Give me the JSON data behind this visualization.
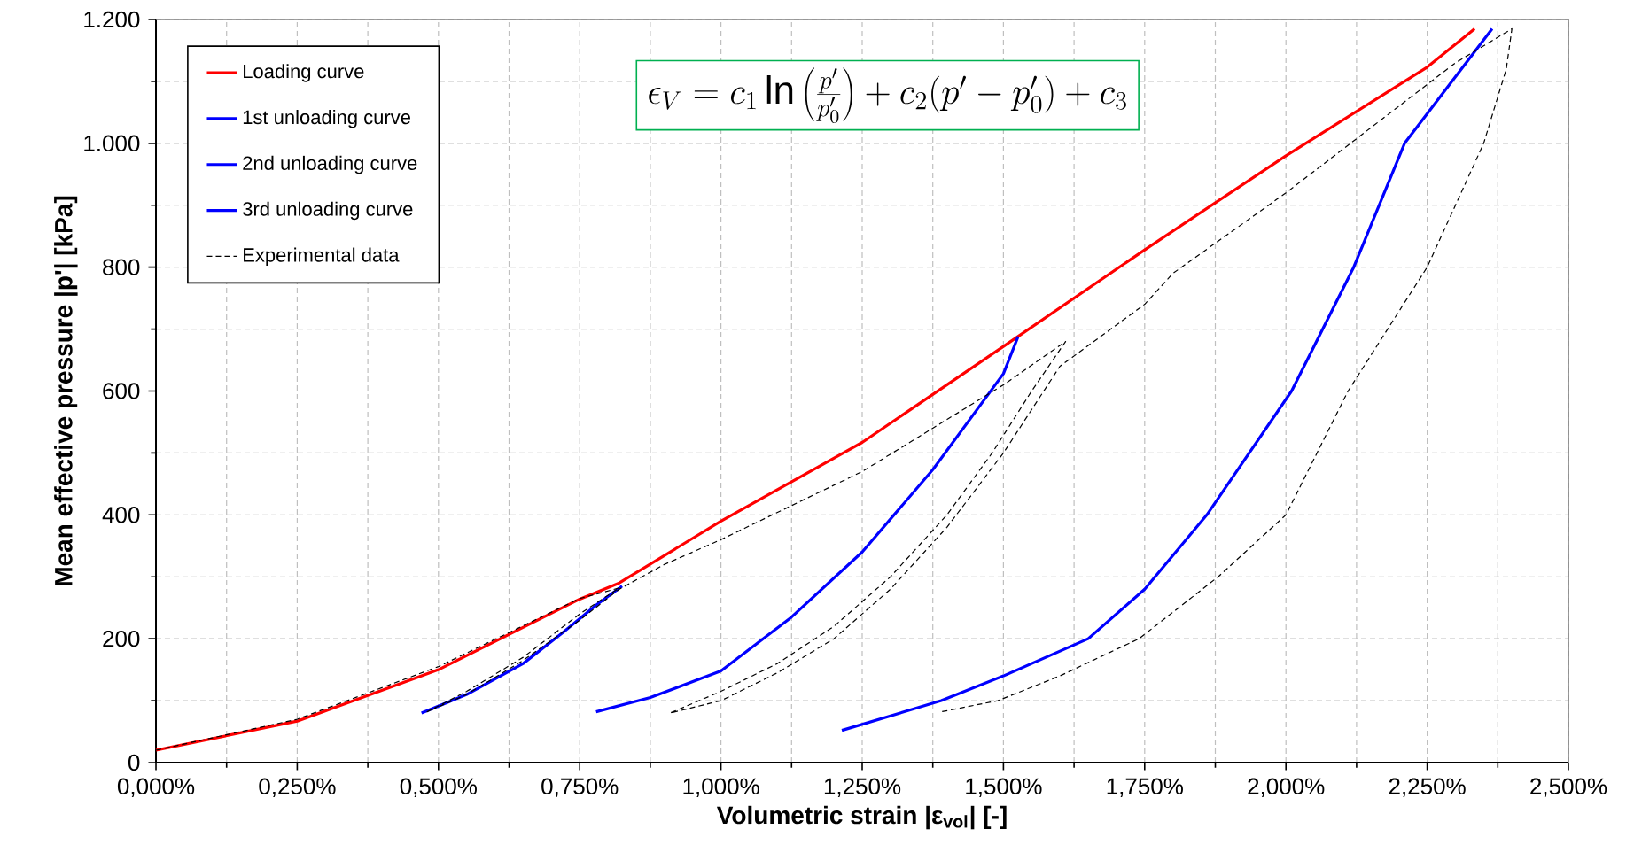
{
  "chart_data": {
    "type": "line",
    "xlabel": "Volumetric strain |ε$_{vol}$| [-]",
    "ylabel": "Mean effective pressure |p'| [kPa]",
    "annotations": [
      "\\epsilon_V = c_1 \\ln\\left(\\frac{p'}{p'_0}\\right) + c_2(p' - p'_0) + c_3"
    ],
    "xlim": [
      0,
      2.5
    ],
    "ylim": [
      0,
      1200
    ],
    "xticks": [
      {
        "value": 0,
        "label": "0,000%"
      },
      {
        "value": 0.25,
        "label": "0,250%"
      },
      {
        "value": 0.5,
        "label": "0,500%"
      },
      {
        "value": 0.75,
        "label": "0,750%"
      },
      {
        "value": 1.0,
        "label": "1,000%"
      },
      {
        "value": 1.25,
        "label": "1,250%"
      },
      {
        "value": 1.5,
        "label": "1,500%"
      },
      {
        "value": 1.75,
        "label": "1,750%"
      },
      {
        "value": 2.0,
        "label": "2,000%"
      },
      {
        "value": 2.25,
        "label": "2,250%"
      },
      {
        "value": 2.5,
        "label": "2,500%"
      }
    ],
    "yticks": [
      0,
      200,
      400,
      600,
      800,
      {
        "value": 1000,
        "label": "1.000"
      },
      {
        "value": 1200,
        "label": "1.200"
      }
    ],
    "grid": true,
    "legend": "top left",
    "marker": "none",
    "series": [
      {
        "name": "Loading curve",
        "color": "#ff0000",
        "x": [
          0,
          0.25,
          0.5,
          0.75,
          0.82,
          1.0,
          1.25,
          1.5,
          1.75,
          2.0,
          2.25,
          2.334
        ],
        "values": [
          20,
          67,
          150,
          264,
          290,
          390,
          517,
          672,
          828,
          980,
          1123,
          1185
        ]
      },
      {
        "name": "1st unloading curve",
        "color": "#0000ff",
        "x": [
          0.47,
          0.55,
          0.65,
          0.72,
          0.78,
          0.825
        ],
        "values": [
          80,
          110,
          160,
          210,
          255,
          285
        ]
      },
      {
        "name": "2nd unloading curve",
        "color": "#0000ff",
        "x": [
          0.779,
          0.875,
          1.0,
          1.125,
          1.25,
          1.375,
          1.5,
          1.526
        ],
        "values": [
          82,
          105,
          148,
          235,
          340,
          473,
          628,
          688
        ]
      },
      {
        "name": "3rd unloading curve",
        "color": "#0000ff",
        "x": [
          1.214,
          1.39,
          1.5,
          1.65,
          1.75,
          1.86,
          2.01,
          2.12,
          2.21,
          2.365
        ],
        "values": [
          52,
          100,
          140,
          200,
          280,
          400,
          600,
          800,
          1000,
          1185
        ]
      },
      {
        "name": "Experimental data",
        "color": "#000000",
        "line_style": "dashed",
        "x": [
          0,
          0.25,
          0.5,
          0.75,
          0.82,
          0.75,
          0.65,
          0.55,
          0.48,
          0.55,
          0.65,
          0.75,
          0.82,
          0.9,
          1.0,
          1.25,
          1.5,
          1.61,
          1.55,
          1.48,
          1.4,
          1.3,
          1.2,
          1.1,
          1.0,
          0.91,
          1.0,
          1.1,
          1.2,
          1.3,
          1.4,
          1.5,
          1.6,
          1.75,
          1.8,
          2.0,
          2.2,
          2.3,
          2.4,
          2.39,
          2.35,
          2.25,
          2.11,
          2.0,
          1.88,
          1.74,
          1.6,
          1.49,
          1.39
        ],
        "values": [
          20,
          70,
          155,
          265,
          282,
          240,
          170,
          115,
          82,
          110,
          165,
          230,
          280,
          320,
          360,
          470,
          610,
          680,
          600,
          500,
          400,
          300,
          220,
          160,
          115,
          80,
          100,
          145,
          200,
          280,
          380,
          500,
          640,
          740,
          790,
          920,
          1060,
          1130,
          1185,
          1120,
          1000,
          800,
          600,
          400,
          300,
          200,
          140,
          100,
          82
        ]
      }
    ]
  }
}
